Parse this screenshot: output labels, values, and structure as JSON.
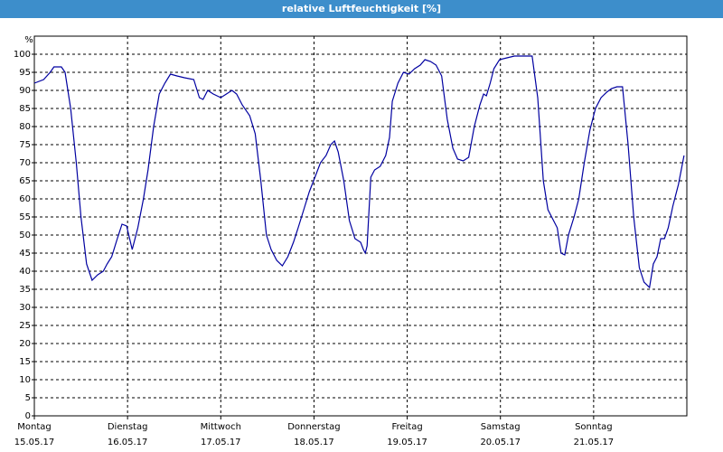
{
  "chart_data": {
    "type": "line",
    "title": "relative Luftfeuchtigkeit [%]",
    "y_label": "%",
    "xlim": [
      0,
      7
    ],
    "ylim": [
      0,
      105
    ],
    "yticks": [
      0,
      5,
      10,
      15,
      20,
      25,
      30,
      35,
      40,
      45,
      50,
      55,
      60,
      65,
      70,
      75,
      80,
      85,
      90,
      95,
      100
    ],
    "xticks": [
      {
        "value": 0,
        "label": "Montag"
      },
      {
        "value": 1,
        "label": "Dienstag"
      },
      {
        "value": 2,
        "label": "Mittwoch"
      },
      {
        "value": 3,
        "label": "Donnerstag"
      },
      {
        "value": 4,
        "label": "Freitag"
      },
      {
        "value": 5,
        "label": "Samstag"
      },
      {
        "value": 6,
        "label": "Sonntag"
      }
    ],
    "xtick_dates": [
      "15.05.17",
      "16.05.17",
      "17.05.17",
      "18.05.17",
      "19.05.17",
      "20.05.17",
      "21.05.17"
    ],
    "grid": true,
    "x": [
      0,
      0.1,
      0.17,
      0.21,
      0.29,
      0.33,
      0.39,
      0.45,
      0.5,
      0.56,
      0.62,
      0.68,
      0.74,
      0.78,
      0.83,
      0.89,
      0.94,
      0.99,
      1.05,
      1.11,
      1.17,
      1.22,
      1.28,
      1.34,
      1.4,
      1.46,
      1.53,
      1.61,
      1.71,
      1.77,
      1.81,
      1.86,
      1.92,
      2.0,
      2.06,
      2.12,
      2.17,
      2.23,
      2.31,
      2.37,
      2.43,
      2.49,
      2.54,
      2.6,
      2.66,
      2.72,
      2.78,
      2.83,
      2.89,
      2.95,
      3.01,
      3.07,
      3.13,
      3.18,
      3.22,
      3.26,
      3.32,
      3.38,
      3.44,
      3.5,
      3.53,
      3.55,
      3.57,
      3.61,
      3.65,
      3.71,
      3.77,
      3.81,
      3.84,
      3.9,
      3.96,
      4.02,
      4.08,
      4.14,
      4.19,
      4.25,
      4.31,
      4.37,
      4.43,
      4.49,
      4.54,
      4.6,
      4.66,
      4.72,
      4.78,
      4.82,
      4.85,
      4.89,
      4.93,
      4.99,
      5.07,
      5.15,
      5.2,
      5.26,
      5.34,
      5.4,
      5.46,
      5.51,
      5.57,
      5.61,
      5.65,
      5.69,
      5.73,
      5.79,
      5.84,
      5.9,
      5.96,
      6.02,
      6.08,
      6.14,
      6.19,
      6.25,
      6.31,
      6.37,
      6.43,
      6.49,
      6.54,
      6.6,
      6.64,
      6.68,
      6.72,
      6.76,
      6.8,
      6.85,
      6.91,
      6.97
    ],
    "series": [
      {
        "color": "#0000a0",
        "values": [
          92,
          93,
          95,
          96.5,
          96.5,
          95,
          85,
          70,
          55,
          42,
          37.5,
          39,
          40,
          42,
          44,
          49,
          53,
          52.5,
          46,
          52,
          60,
          68,
          80,
          89,
          92,
          94.5,
          94,
          93.5,
          93,
          88,
          87.5,
          90,
          89,
          88,
          89,
          90,
          89,
          86,
          83,
          78,
          65,
          50,
          46,
          43,
          41.5,
          44,
          48,
          52,
          57,
          62,
          66,
          70,
          72,
          75,
          76,
          73,
          65,
          54,
          49,
          48,
          46,
          45,
          47,
          66,
          68,
          69,
          72,
          77,
          87,
          92,
          95,
          94.5,
          96,
          97,
          98.5,
          98,
          97,
          94,
          82,
          74,
          71,
          70.5,
          71.5,
          80,
          86,
          89,
          88.5,
          92,
          96,
          98.5,
          99,
          99.5,
          99.5,
          99.5,
          99.5,
          88,
          65,
          57,
          54,
          52,
          45,
          44.5,
          50,
          55,
          60,
          70,
          79,
          85,
          88,
          89.5,
          90.5,
          91,
          91,
          75,
          55,
          41,
          37,
          35.5,
          42,
          44,
          49,
          49,
          52,
          58,
          64,
          72
        ]
      }
    ]
  }
}
